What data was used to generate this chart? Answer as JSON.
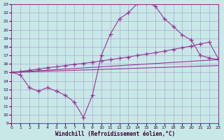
{
  "xlabel": "Windchill (Refroidissement éolien,°C)",
  "xlim": [
    0,
    23
  ],
  "ylim": [
    9,
    23
  ],
  "yticks": [
    9,
    10,
    11,
    12,
    13,
    14,
    15,
    16,
    17,
    18,
    19,
    20,
    21,
    22,
    23
  ],
  "xticks": [
    0,
    1,
    2,
    3,
    4,
    5,
    6,
    7,
    8,
    9,
    10,
    11,
    12,
    13,
    14,
    15,
    16,
    17,
    18,
    19,
    20,
    21,
    22,
    23
  ],
  "background_color": "#c8e8e8",
  "grid_color": "#aaaacc",
  "line_color": "#993399",
  "curve1_x": [
    0,
    1,
    2,
    3,
    4,
    5,
    6,
    7,
    8,
    9,
    10,
    11,
    12,
    13,
    14,
    15,
    16,
    17,
    18,
    19,
    20,
    21,
    22,
    23
  ],
  "curve1_y": [
    15.0,
    14.7,
    13.2,
    12.8,
    13.2,
    12.8,
    12.3,
    11.5,
    9.7,
    12.3,
    17.0,
    19.5,
    21.3,
    22.0,
    23.1,
    23.2,
    22.8,
    21.3,
    20.4,
    19.4,
    18.8,
    17.0,
    16.7,
    16.5
  ],
  "curve2_x": [
    0,
    1,
    2,
    3,
    4,
    5,
    6,
    7,
    8,
    9,
    10,
    11,
    12,
    13,
    14,
    15,
    16,
    17,
    18,
    19,
    20,
    21,
    22,
    23
  ],
  "curve2_y": [
    15.0,
    15.1,
    15.25,
    15.4,
    15.55,
    15.65,
    15.8,
    15.95,
    16.05,
    16.2,
    16.35,
    16.5,
    16.65,
    16.8,
    17.0,
    17.15,
    17.3,
    17.5,
    17.7,
    17.9,
    18.1,
    18.35,
    18.55,
    16.6
  ],
  "curve3_x": [
    0,
    23
  ],
  "curve3_y": [
    15.0,
    16.5
  ],
  "curve4_x": [
    0,
    23
  ],
  "curve4_y": [
    15.0,
    15.8
  ]
}
